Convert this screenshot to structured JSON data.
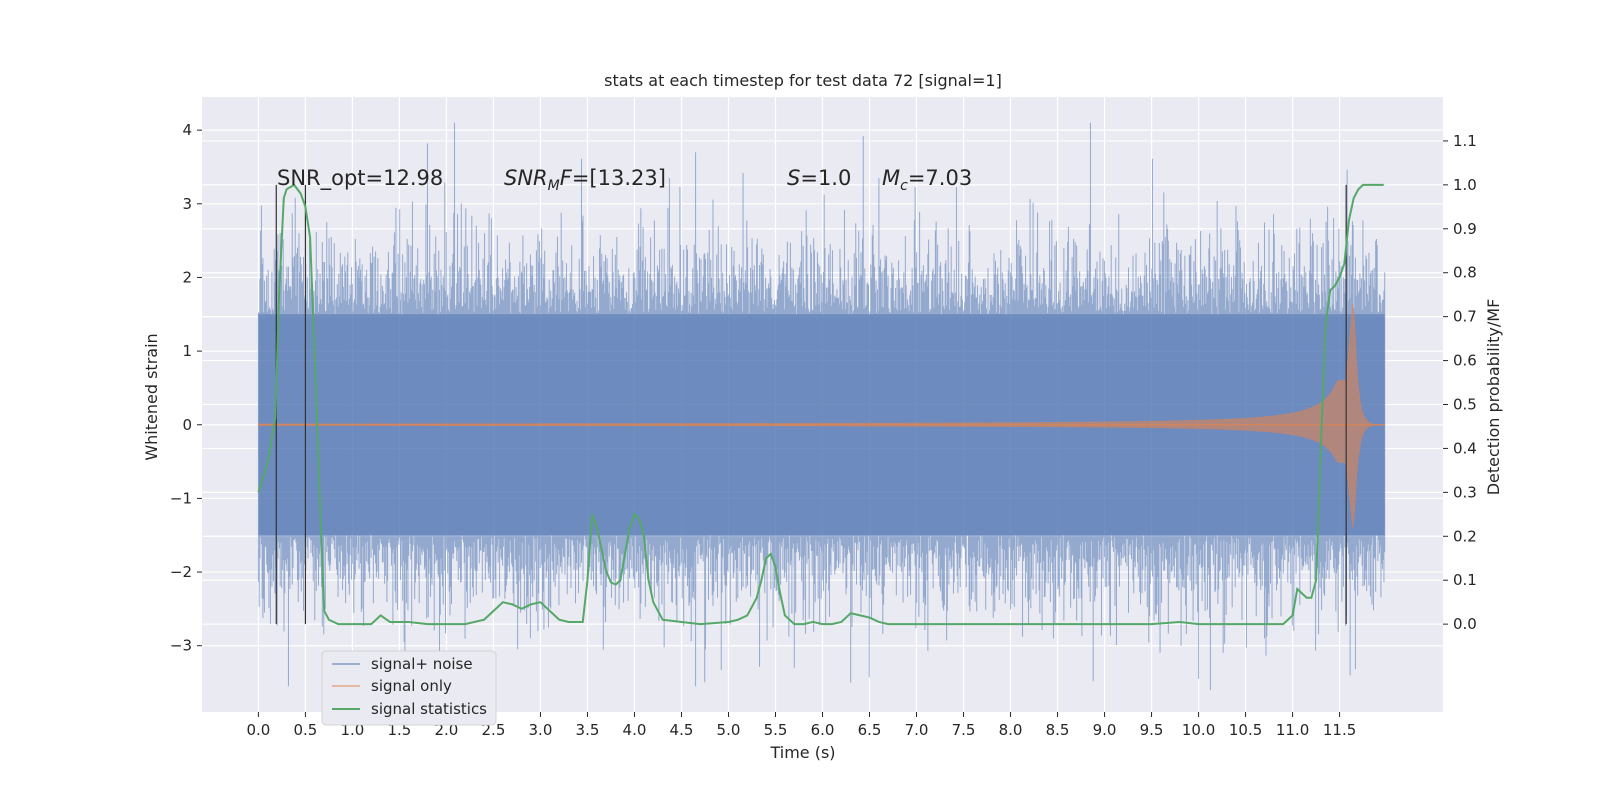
{
  "chart_data": {
    "type": "line",
    "title": "stats at each timestep for test data 72 [signal=1]",
    "xlabel": "Time (s)",
    "ylabel_left": "Whitened strain",
    "ylabel_right": "Detection probability/MF",
    "xlim": [
      -0.6,
      12.6
    ],
    "ylim_left": [
      -3.9,
      4.45
    ],
    "ylim_right": [
      -0.2,
      1.2
    ],
    "x_ticks": [
      0.0,
      0.5,
      1.0,
      1.5,
      2.0,
      2.5,
      3.0,
      3.5,
      4.0,
      4.5,
      5.0,
      5.5,
      6.0,
      6.5,
      7.0,
      7.5,
      8.0,
      8.5,
      9.0,
      9.5,
      10.0,
      10.5,
      11.0,
      11.5
    ],
    "x_tick_labels": [
      "0.0",
      "0.5",
      "1.0",
      "1.5",
      "2.0",
      "2.5",
      "3.0",
      "3.5",
      "4.0",
      "4.5",
      "5.0",
      "5.5",
      "6.0",
      "6.5",
      "7.0",
      "7.5",
      "8.0",
      "8.5",
      "9.0",
      "9.5",
      "10.0",
      "10.5",
      "11.0",
      "11.5"
    ],
    "y_left_ticks": [
      -3,
      -2,
      -1,
      0,
      1,
      2,
      3,
      4
    ],
    "y_left_tick_labels": [
      "−3",
      "−2",
      "−1",
      "0",
      "1",
      "2",
      "3",
      "4"
    ],
    "y_right_ticks": [
      0.0,
      0.1,
      0.2,
      0.3,
      0.4,
      0.5,
      0.6,
      0.7,
      0.8,
      0.9,
      1.0,
      1.1
    ],
    "y_right_tick_labels": [
      "0.0",
      "0.1",
      "0.2",
      "0.3",
      "0.4",
      "0.5",
      "0.6",
      "0.7",
      "0.8",
      "0.9",
      "1.0",
      "1.1"
    ],
    "grid": true,
    "legend_position": "lower-left",
    "annotations": [
      {
        "text": "SNR_opt=12.98"
      },
      {
        "text": "SNR_MF=[13.23]"
      },
      {
        "text": "S=1.0"
      },
      {
        "text": "M_c=7.03"
      }
    ],
    "vertical_markers_x": [
      0.19,
      0.5,
      11.57
    ],
    "marker_ymin_right": 0.0,
    "marker_ymax_right": 1.0,
    "series": [
      {
        "name": "signal+ noise",
        "color": "#4c72b0",
        "description": "whitened strain with noise, amplitude roughly ±1.5 with peaks up to ±3.5",
        "x_range": [
          0.0,
          11.98
        ],
        "noise_envelope": 1.5,
        "peak_max": 4.1,
        "peak_min": -3.55
      },
      {
        "name": "signal only",
        "color": "#dd8452",
        "description": "chirp signal growing in amplitude toward merger",
        "x_range": [
          0.0,
          11.98
        ],
        "merger_x": 11.65,
        "peak_amplitude": 1.8
      },
      {
        "name": "signal statistics",
        "color": "#55a868",
        "x": [
          0.0,
          0.1,
          0.18,
          0.22,
          0.27,
          0.3,
          0.38,
          0.45,
          0.5,
          0.55,
          0.6,
          0.65,
          0.7,
          0.75,
          0.85,
          1.0,
          1.2,
          1.3,
          1.4,
          1.6,
          1.8,
          2.0,
          2.2,
          2.4,
          2.5,
          2.6,
          2.7,
          2.8,
          2.9,
          3.0,
          3.1,
          3.2,
          3.3,
          3.45,
          3.5,
          3.55,
          3.6,
          3.65,
          3.7,
          3.75,
          3.8,
          3.85,
          3.9,
          3.95,
          4.0,
          4.05,
          4.1,
          4.15,
          4.2,
          4.3,
          4.5,
          4.7,
          5.0,
          5.1,
          5.2,
          5.3,
          5.35,
          5.4,
          5.45,
          5.5,
          5.55,
          5.6,
          5.7,
          5.8,
          5.9,
          6.0,
          6.1,
          6.2,
          6.3,
          6.4,
          6.5,
          6.6,
          6.7,
          7.0,
          8.0,
          9.0,
          9.5,
          9.8,
          10.0,
          10.5,
          10.9,
          11.0,
          11.05,
          11.1,
          11.15,
          11.2,
          11.25,
          11.3,
          11.35,
          11.4,
          11.45,
          11.5,
          11.55,
          11.6,
          11.65,
          11.7,
          11.75,
          11.8,
          11.9,
          11.97
        ],
        "y": [
          0.3,
          0.37,
          0.47,
          0.75,
          0.97,
          0.99,
          1.0,
          0.98,
          0.95,
          0.88,
          0.6,
          0.3,
          0.03,
          0.01,
          0.0,
          0.0,
          0.0,
          0.02,
          0.005,
          0.005,
          0.0,
          0.0,
          0.0,
          0.01,
          0.03,
          0.05,
          0.045,
          0.035,
          0.045,
          0.05,
          0.03,
          0.01,
          0.005,
          0.005,
          0.1,
          0.25,
          0.22,
          0.17,
          0.12,
          0.095,
          0.09,
          0.1,
          0.16,
          0.22,
          0.25,
          0.24,
          0.2,
          0.1,
          0.05,
          0.01,
          0.005,
          0.0,
          0.005,
          0.01,
          0.02,
          0.06,
          0.1,
          0.15,
          0.16,
          0.13,
          0.07,
          0.02,
          0.0,
          0.0,
          0.005,
          0.0,
          0.0,
          0.005,
          0.025,
          0.02,
          0.015,
          0.005,
          0.0,
          0.0,
          0.0,
          0.0,
          0.0,
          0.005,
          0.0,
          0.0,
          0.0,
          0.02,
          0.08,
          0.07,
          0.06,
          0.06,
          0.1,
          0.4,
          0.68,
          0.76,
          0.77,
          0.79,
          0.82,
          0.92,
          0.97,
          0.99,
          1.0,
          1.0,
          1.0,
          1.0
        ]
      }
    ]
  }
}
